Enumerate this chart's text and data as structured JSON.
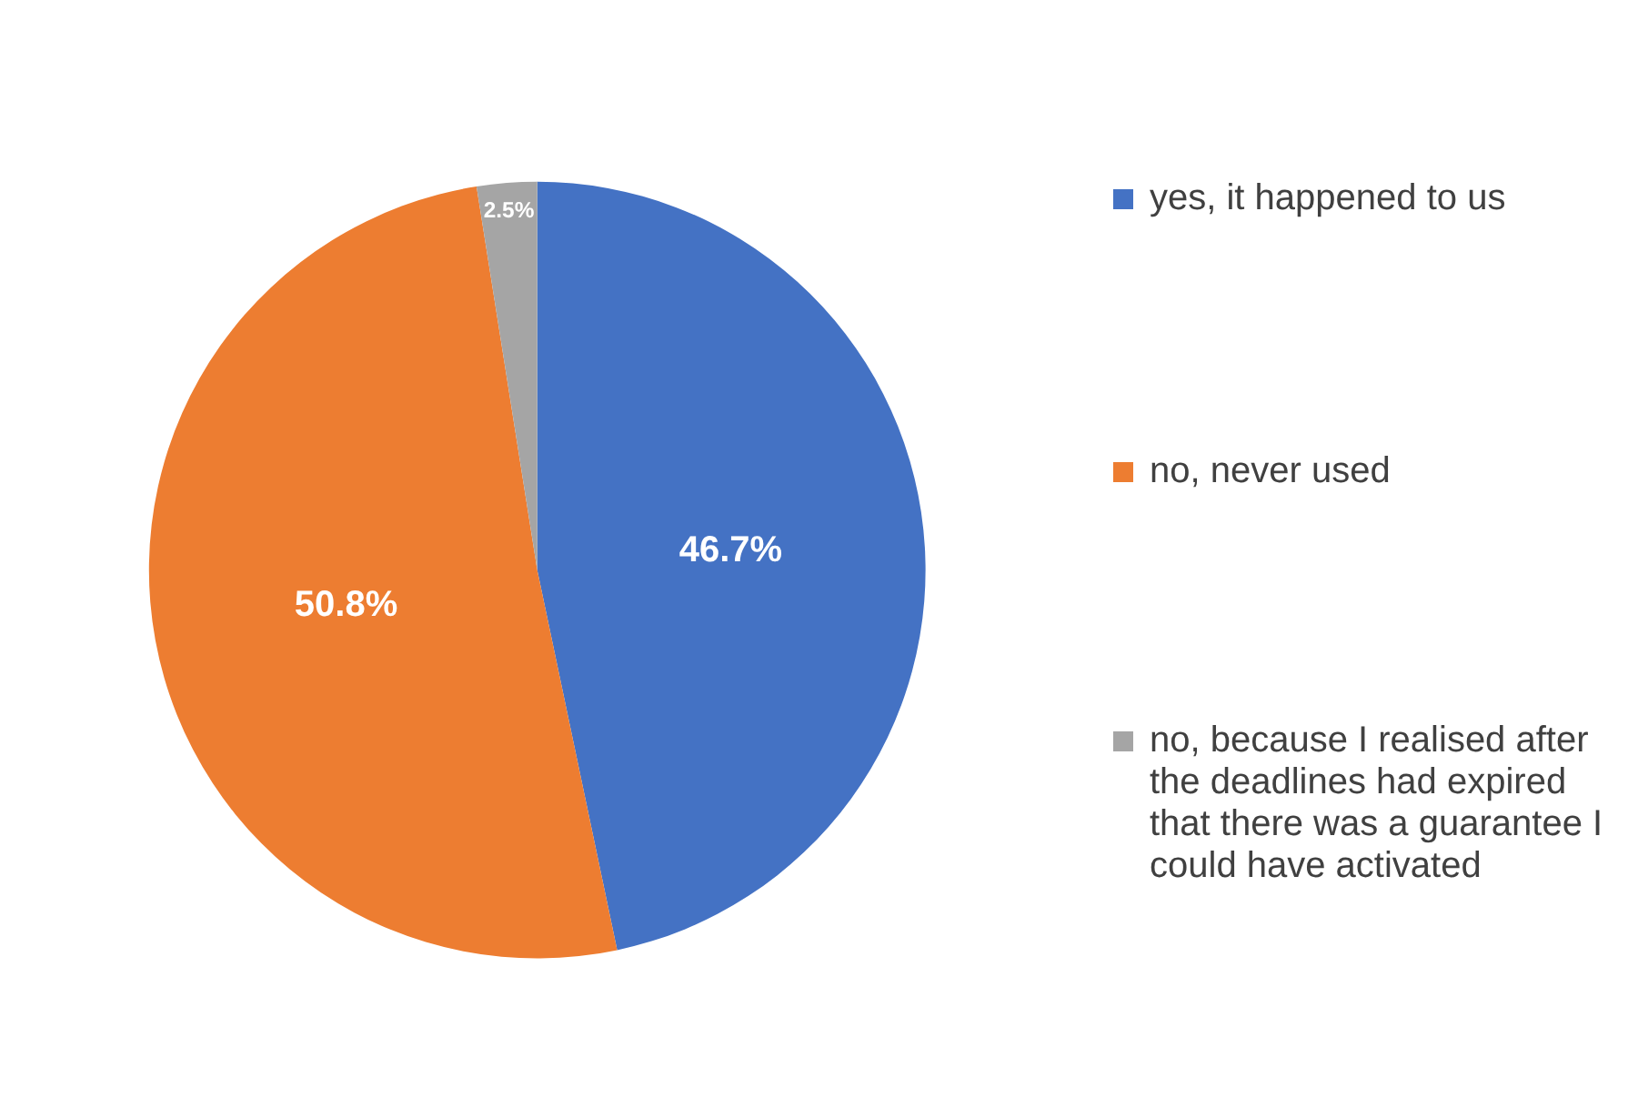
{
  "chart_data": {
    "type": "pie",
    "categories": [
      "yes, it happened to us",
      "no, never used",
      "no, because I realised after the deadlines had expired that there was a guarantee I could have activated"
    ],
    "values": [
      46.7,
      50.8,
      2.5
    ],
    "value_labels": [
      "46.7%",
      "50.8%",
      "2.5%"
    ],
    "colors": [
      "#4472c4",
      "#ed7d31",
      "#a5a5a5"
    ],
    "legend": "right"
  }
}
